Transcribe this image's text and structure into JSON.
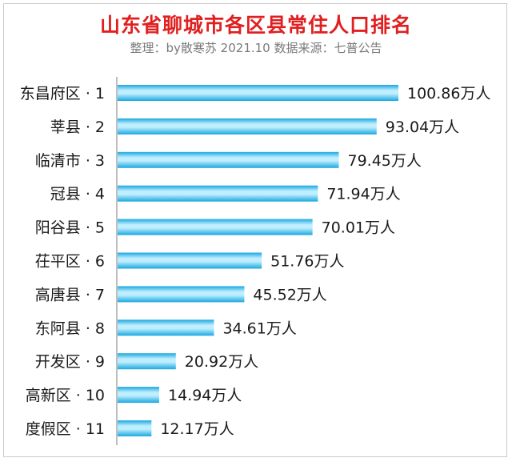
{
  "title": "山东省聊城市各区县常住人口排名",
  "subtitle": "整理：by散寒苏 2021.10 数据来源：七普公告",
  "colors": {
    "title": "#e02020",
    "bar_dark": "#19a8df",
    "bar_light": "#bfeeff",
    "axis": "#7f7f7f"
  },
  "chart_data": {
    "type": "bar",
    "orientation": "horizontal",
    "categories": [
      "东昌府区 · 1",
      "莘县 · 2",
      "临清市 · 3",
      "冠县 · 4",
      "阳谷县 · 5",
      "茌平区 · 6",
      "高唐县 · 7",
      "东阿县 · 8",
      "开发区 · 9",
      "高新区 · 10",
      "度假区 · 11"
    ],
    "values": [
      100.86,
      93.04,
      79.45,
      71.94,
      70.01,
      51.76,
      45.52,
      34.61,
      20.92,
      14.94,
      12.17
    ],
    "value_labels": [
      "100.86万人",
      "93.04万人",
      "79.45万人",
      "71.94万人",
      "70.01万人",
      "51.76万人",
      "45.52万人",
      "34.61万人",
      "20.92万人",
      "14.94万人",
      "12.17万人"
    ],
    "unit": "万人",
    "grid": false,
    "legend": "none"
  }
}
